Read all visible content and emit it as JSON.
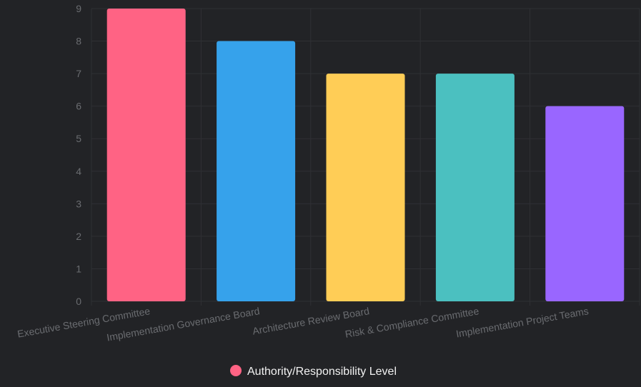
{
  "chart_data": {
    "type": "bar",
    "categories": [
      "Executive Steering Committee",
      "Implementation Governance Board",
      "Architecture Review Board",
      "Risk & Compliance Committee",
      "Implementation Project Teams"
    ],
    "series": [
      {
        "name": "Authority/Responsibility Level",
        "values": [
          9,
          8,
          7,
          7,
          6
        ]
      }
    ],
    "bar_colors": [
      "#ff6384",
      "#36a2eb",
      "#ffcd56",
      "#4bc0c0",
      "#9966ff"
    ],
    "ylim": [
      0,
      9
    ],
    "yticks": [
      "0",
      "1",
      "2",
      "3",
      "4",
      "5",
      "6",
      "7",
      "8",
      "9"
    ],
    "grid": true,
    "legend": {
      "position": "bottom",
      "label": "Authority/Responsibility Level",
      "color": "#ff6384"
    },
    "colors": {
      "background": "#222326",
      "grid": "#2f3034",
      "tick_text": "#6a6c70",
      "legend_text": "#f2f2f2"
    }
  }
}
